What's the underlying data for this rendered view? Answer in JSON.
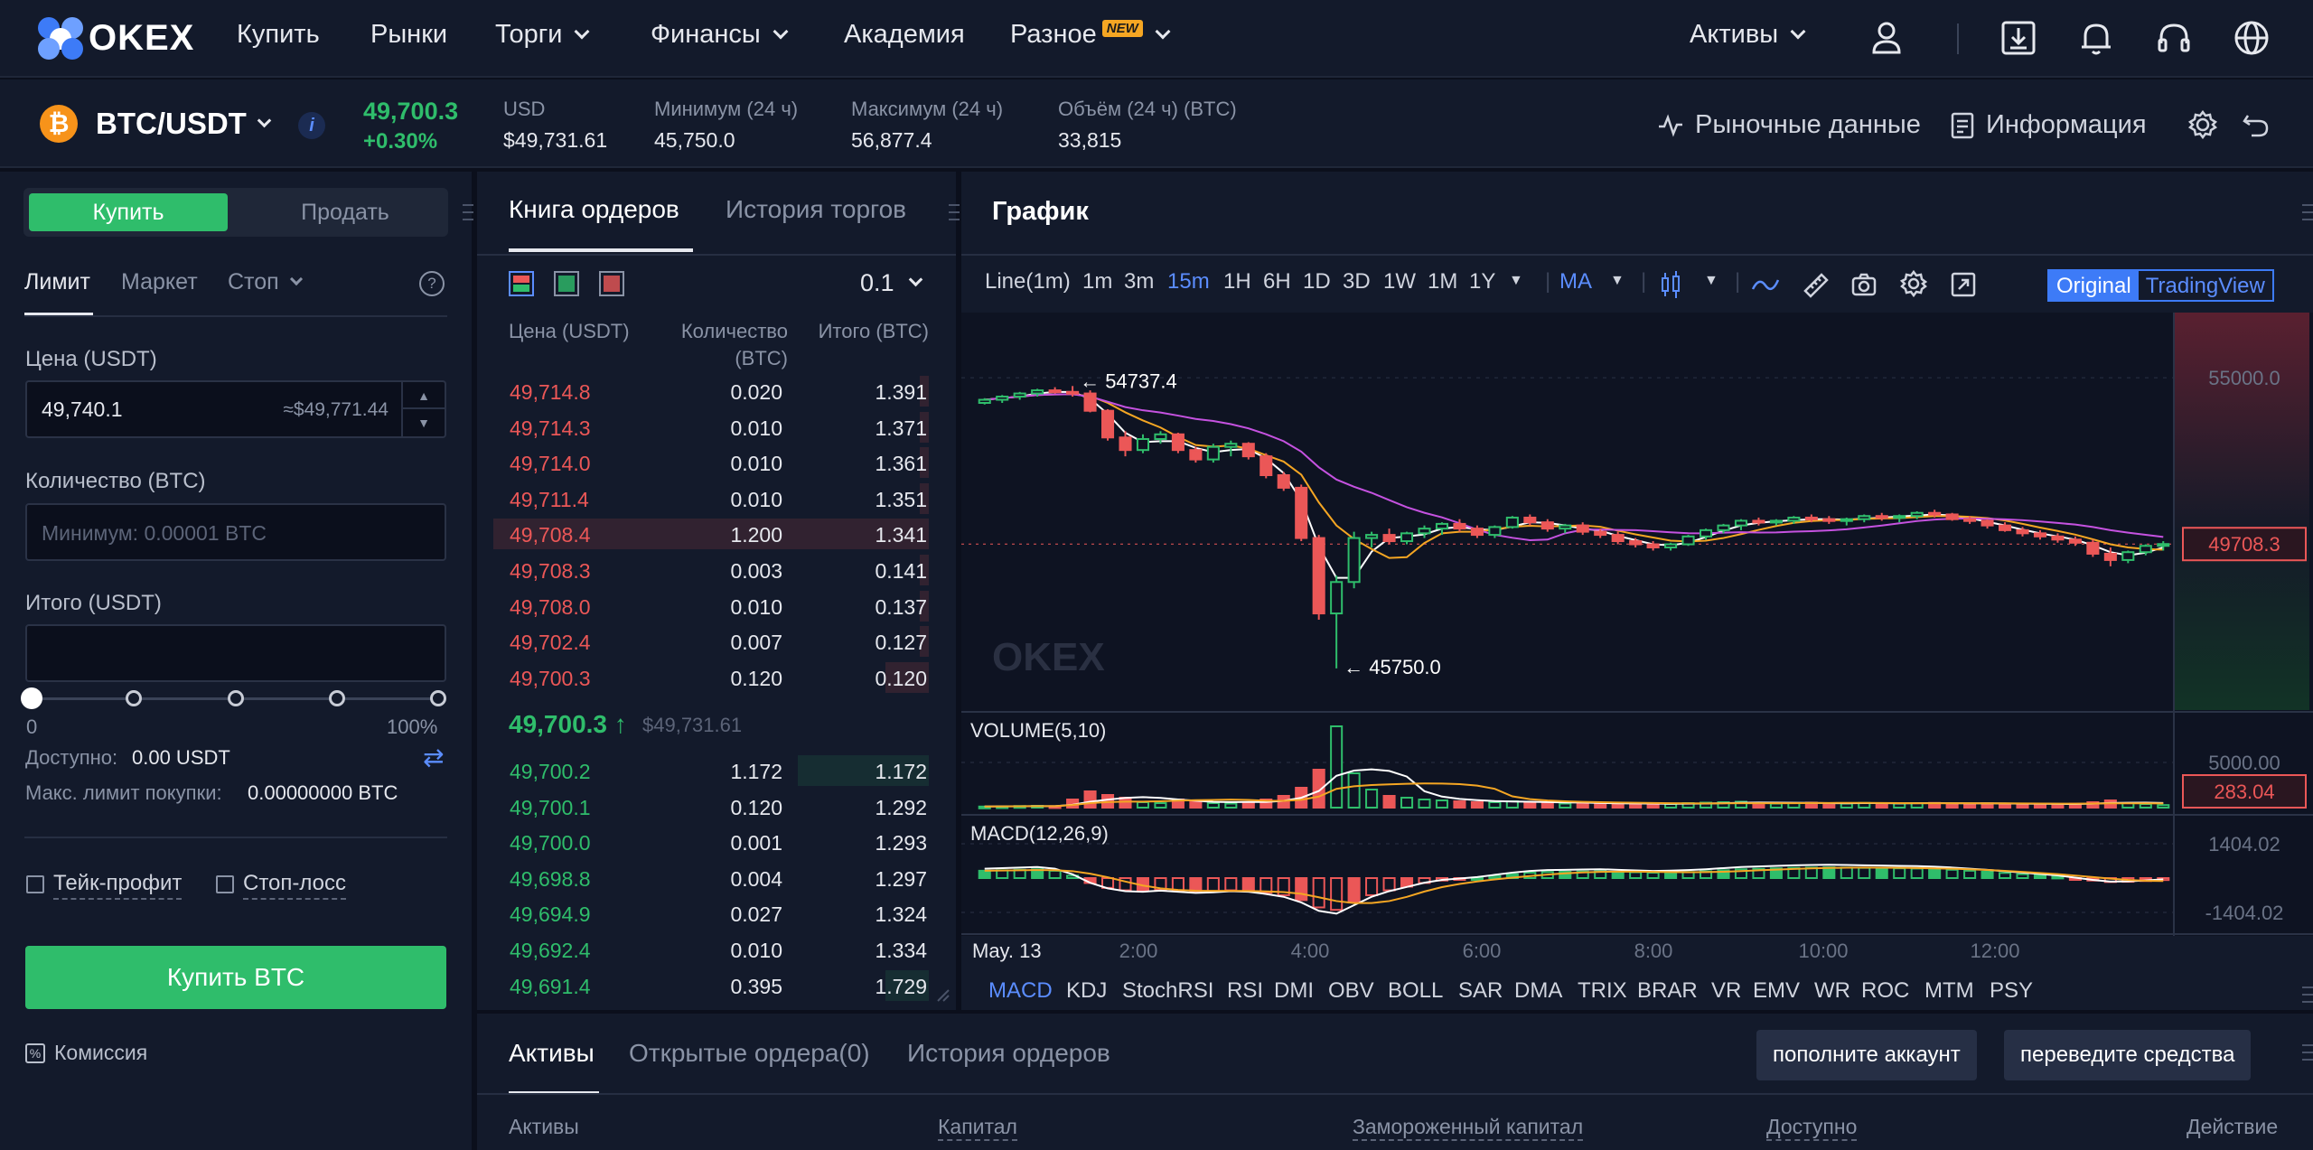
{
  "nav": {
    "brand": "OKEX",
    "items": [
      "Купить",
      "Рынки",
      "Торги",
      "Финансы",
      "Академия",
      "Разное"
    ],
    "new_badge": "NEW",
    "assets": "Активы",
    "icons": [
      "user-icon",
      "download-icon",
      "bell-icon",
      "headset-icon",
      "globe-icon"
    ]
  },
  "ticker": {
    "pair": "BTC/USDT",
    "coin_symbol": "₿",
    "info": "i",
    "last_price": "49,700.3",
    "change": "+0.30%",
    "stats": [
      {
        "label": "USD",
        "value": "$49,731.61"
      },
      {
        "label": "Минимум (24 ч)",
        "value": "45,750.0"
      },
      {
        "label": "Максимум (24 ч)",
        "value": "56,877.4"
      },
      {
        "label": "Объём (24 ч) (BTC)",
        "value": "33,815"
      }
    ],
    "market_data": "Рыночные данные",
    "information": "Информация"
  },
  "trade": {
    "buy_tab": "Купить",
    "sell_tab": "Продать",
    "order_types": [
      "Лимит",
      "Маркет",
      "Стоп"
    ],
    "help": "?",
    "price_label": "Цена (USDT)",
    "price_value": "49,740.1",
    "price_hint": "≈$49,771.44",
    "qty_label": "Количество (BTC)",
    "qty_placeholder": "Минимум: 0.00001 BTC",
    "total_label": "Итого (USDT)",
    "slider_min": "0",
    "slider_max": "100%",
    "slider_value": 0,
    "available_label": "Доступно:",
    "available_value": "0.00 USDT",
    "max_label": "Макс. лимит покупки:",
    "max_value": "0.00000000 BTC",
    "take_profit": "Тейк-профит",
    "stop_loss": "Стоп-лосс",
    "buy_button": "Купить BTC",
    "fee": "Комиссия",
    "accent_buy": "#2fbd6b"
  },
  "orderbook": {
    "tab_book": "Книга ордеров",
    "tab_history": "История торгов",
    "precision": "0.1",
    "headers": {
      "price": "Цена (USDT)",
      "qty": "Количество (BTC)",
      "total": "Итого (BTC)"
    },
    "asks": [
      {
        "price": "49,714.8",
        "qty": "0.020",
        "total": "1.391",
        "depth": 0.02
      },
      {
        "price": "49,714.3",
        "qty": "0.010",
        "total": "1.371",
        "depth": 0.02
      },
      {
        "price": "49,714.0",
        "qty": "0.010",
        "total": "1.361",
        "depth": 0.02
      },
      {
        "price": "49,711.4",
        "qty": "0.010",
        "total": "1.351",
        "depth": 0.02
      },
      {
        "price": "49,708.4",
        "qty": "1.200",
        "total": "1.341",
        "depth": 1.0
      },
      {
        "price": "49,708.3",
        "qty": "0.003",
        "total": "0.141",
        "depth": 0.02
      },
      {
        "price": "49,708.0",
        "qty": "0.010",
        "total": "0.137",
        "depth": 0.02
      },
      {
        "price": "49,702.4",
        "qty": "0.007",
        "total": "0.127",
        "depth": 0.02
      },
      {
        "price": "49,700.3",
        "qty": "0.120",
        "total": "0.120",
        "depth": 0.1
      }
    ],
    "mid_price": "49,700.3",
    "mid_arrow": "↑",
    "mid_usd": "$49,731.61",
    "bids": [
      {
        "price": "49,700.2",
        "qty": "1.172",
        "total": "1.172",
        "depth": 0.3
      },
      {
        "price": "49,700.1",
        "qty": "0.120",
        "total": "1.292",
        "depth": 0.0
      },
      {
        "price": "49,700.0",
        "qty": "0.001",
        "total": "1.293",
        "depth": 0.0
      },
      {
        "price": "49,698.8",
        "qty": "0.004",
        "total": "1.297",
        "depth": 0.0
      },
      {
        "price": "49,694.9",
        "qty": "0.027",
        "total": "1.324",
        "depth": 0.0
      },
      {
        "price": "49,692.4",
        "qty": "0.010",
        "total": "1.334",
        "depth": 0.0
      },
      {
        "price": "49,691.4",
        "qty": "0.395",
        "total": "1.729",
        "depth": 0.1
      }
    ]
  },
  "chart": {
    "title": "График",
    "intervals": [
      "Line(1m)",
      "1m",
      "3m",
      "15m",
      "1H",
      "6H",
      "1D",
      "3D",
      "1W",
      "1M",
      "1Y"
    ],
    "active_interval": "15m",
    "ma_label": "MA",
    "toggle_original": "Original",
    "toggle_tv": "TradingView",
    "watermark": "OKEX",
    "volume_label": "VOLUME(5,10)",
    "macd_label": "MACD(12,26,9)",
    "indicators": [
      "MACD",
      "KDJ",
      "StochRSI",
      "RSI",
      "DMI",
      "OBV",
      "BOLL",
      "SAR",
      "DMA",
      "TRIX",
      "BRAR",
      "VR",
      "EMV",
      "WR",
      "ROC",
      "MTM",
      "PSY"
    ],
    "active_indicator": "MACD"
  },
  "chart_data": {
    "type": "candlestick",
    "price_axis": {
      "ticks": [
        "55000.0"
      ],
      "min": 45000,
      "max": 56500
    },
    "current_price_label": "49708.3",
    "current_price": 49708.3,
    "high_marker": "← 54737.4",
    "low_marker": "← 45750.0",
    "high_value": 54737.4,
    "low_value": 45750.0,
    "volume_axis": {
      "ticks": [
        "5000.00"
      ],
      "max": 9000
    },
    "volume_current_label": "283.04",
    "macd_axis": {
      "ticks": [
        "1404.02",
        "-1404.02"
      ],
      "min": -1700,
      "max": 1700
    },
    "x_labels": [
      "May. 13",
      "2:00",
      "4:00",
      "6:00",
      "8:00",
      "10:00",
      "12:00"
    ],
    "candles": [
      [
        54200,
        54350,
        54150,
        54300
      ],
      [
        54300,
        54450,
        54200,
        54400
      ],
      [
        54400,
        54550,
        54300,
        54500
      ],
      [
        54500,
        54650,
        54400,
        54600
      ],
      [
        54600,
        54700,
        54500,
        54550
      ],
      [
        54550,
        54737.4,
        54400,
        54500
      ],
      [
        54500,
        54600,
        53900,
        53950
      ],
      [
        53950,
        54000,
        53000,
        53100
      ],
      [
        53100,
        53300,
        52500,
        52700
      ],
      [
        52700,
        53200,
        52600,
        53050
      ],
      [
        53050,
        53300,
        52900,
        53200
      ],
      [
        53200,
        53250,
        52600,
        52700
      ],
      [
        52700,
        52800,
        52300,
        52400
      ],
      [
        52400,
        52900,
        52300,
        52800
      ],
      [
        52800,
        53000,
        52500,
        52900
      ],
      [
        52900,
        52950,
        52400,
        52500
      ],
      [
        52500,
        52600,
        51800,
        51900
      ],
      [
        51900,
        52000,
        51400,
        51500
      ],
      [
        51500,
        51600,
        49800,
        49900
      ],
      [
        49900,
        50000,
        47300,
        47500
      ],
      [
        47500,
        48700,
        45750,
        48500
      ],
      [
        48500,
        50100,
        48300,
        49900
      ],
      [
        49900,
        50100,
        49600,
        50000
      ],
      [
        50000,
        50200,
        49700,
        49800
      ],
      [
        49800,
        50100,
        49700,
        50050
      ],
      [
        50050,
        50300,
        49900,
        50200
      ],
      [
        50200,
        50400,
        50000,
        50350
      ],
      [
        50350,
        50500,
        50100,
        50200
      ],
      [
        50200,
        50300,
        49900,
        50000
      ],
      [
        50000,
        50300,
        49900,
        50250
      ],
      [
        50250,
        50600,
        50200,
        50550
      ],
      [
        50550,
        50650,
        50300,
        50400
      ],
      [
        50400,
        50500,
        50100,
        50200
      ],
      [
        50200,
        50350,
        50050,
        50300
      ],
      [
        50300,
        50400,
        50000,
        50100
      ],
      [
        50100,
        50200,
        49900,
        50000
      ],
      [
        50000,
        50100,
        49700,
        49800
      ],
      [
        49800,
        49900,
        49600,
        49700
      ],
      [
        49700,
        49800,
        49500,
        49600
      ],
      [
        49600,
        49750,
        49500,
        49700
      ],
      [
        49700,
        50000,
        49650,
        49950
      ],
      [
        49950,
        50200,
        49850,
        50150
      ],
      [
        50150,
        50350,
        50050,
        50300
      ],
      [
        50300,
        50500,
        50150,
        50450
      ],
      [
        50450,
        50550,
        50300,
        50400
      ],
      [
        50400,
        50500,
        50300,
        50450
      ],
      [
        50450,
        50600,
        50350,
        50550
      ],
      [
        50550,
        50650,
        50400,
        50500
      ],
      [
        50500,
        50600,
        50350,
        50450
      ],
      [
        50450,
        50550,
        50300,
        50500
      ],
      [
        50500,
        50650,
        50400,
        50600
      ],
      [
        50600,
        50700,
        50450,
        50550
      ],
      [
        50550,
        50650,
        50400,
        50600
      ],
      [
        50600,
        50750,
        50500,
        50700
      ],
      [
        50700,
        50800,
        50550,
        50650
      ],
      [
        50650,
        50700,
        50450,
        50500
      ],
      [
        50500,
        50600,
        50350,
        50450
      ],
      [
        50450,
        50500,
        50200,
        50300
      ],
      [
        50300,
        50400,
        50100,
        50150
      ],
      [
        50150,
        50250,
        49950,
        50050
      ],
      [
        50050,
        50150,
        49850,
        49950
      ],
      [
        49950,
        50050,
        49750,
        49850
      ],
      [
        49850,
        49950,
        49650,
        49750
      ],
      [
        49750,
        49850,
        49300,
        49400
      ],
      [
        49400,
        49600,
        49000,
        49200
      ],
      [
        49200,
        49500,
        49100,
        49450
      ],
      [
        49450,
        49700,
        49350,
        49650
      ],
      [
        49650,
        49800,
        49500,
        49708.3
      ]
    ],
    "volumes": [
      120,
      150,
      180,
      200,
      160,
      900,
      1800,
      1400,
      1100,
      600,
      500,
      900,
      700,
      500,
      450,
      600,
      900,
      1300,
      2200,
      4200,
      9000,
      3800,
      2000,
      1300,
      1100,
      900,
      800,
      700,
      600,
      600,
      700,
      650,
      500,
      450,
      500,
      450,
      500,
      400,
      380,
      400,
      500,
      550,
      600,
      650,
      500,
      450,
      500,
      550,
      480,
      450,
      520,
      480,
      460,
      500,
      520,
      450,
      430,
      480,
      420,
      400,
      380,
      360,
      420,
      600,
      800,
      500,
      400,
      283.04
    ],
    "macd_hist": [
      300,
      320,
      340,
      360,
      300,
      100,
      -200,
      -400,
      -500,
      -520,
      -480,
      -520,
      -560,
      -540,
      -500,
      -520,
      -600,
      -700,
      -900,
      -1200,
      -1300,
      -1000,
      -700,
      -500,
      -350,
      -200,
      -100,
      -50,
      0,
      80,
      160,
      220,
      250,
      260,
      270,
      280,
      260,
      240,
      220,
      230,
      250,
      280,
      320,
      360,
      380,
      400,
      420,
      430,
      440,
      430,
      420,
      410,
      400,
      390,
      370,
      340,
      300,
      260,
      210,
      160,
      110,
      60,
      -20,
      -100,
      -160,
      -150,
      -120,
      -80
    ]
  }
}
